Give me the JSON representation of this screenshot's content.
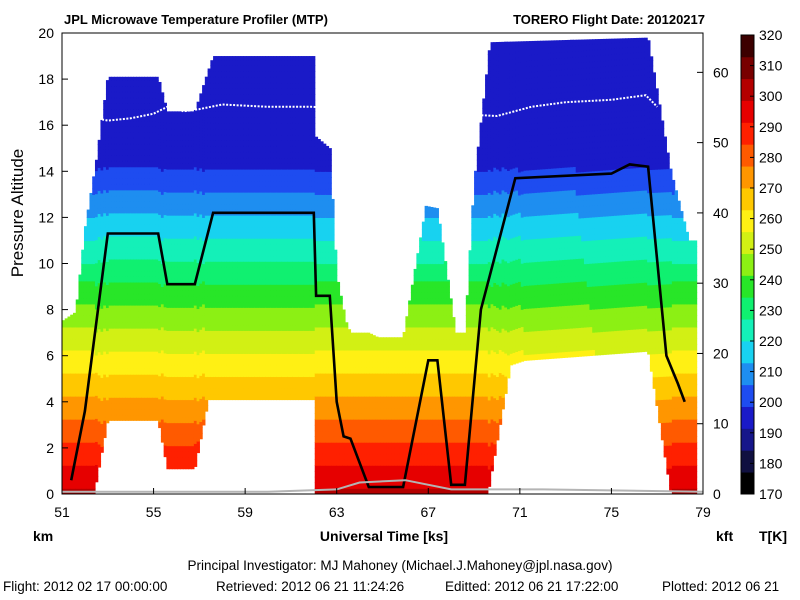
{
  "chart_data": {
    "type": "heatmap",
    "title_left": "JPL Microwave Temperature Profiler (MTP)",
    "title_right": "TORERO  Flight Date: 20120217",
    "xlabel": "Universal Time [ks]",
    "ylabel": "Pressure Altitude",
    "y_unit_left": "km",
    "y_unit_right": "kft",
    "colorbar_unit": "T[K]",
    "xlim": [
      51,
      79
    ],
    "ylim_km": [
      0,
      20
    ],
    "ylim_kft": [
      0,
      65.6
    ],
    "x_ticks": [
      "51",
      "55",
      "59",
      "63",
      "67",
      "71",
      "75",
      "79"
    ],
    "y_ticks_km": [
      "0",
      "2",
      "4",
      "6",
      "8",
      "10",
      "12",
      "14",
      "16",
      "18",
      "20"
    ],
    "y_ticks_kft": [
      "0",
      "10",
      "20",
      "30",
      "40",
      "50",
      "60"
    ],
    "colorbar": {
      "min": 170,
      "max": 320,
      "step": 10,
      "ticks": [
        "170",
        "180",
        "190",
        "200",
        "210",
        "220",
        "230",
        "240",
        "250",
        "260",
        "270",
        "280",
        "290",
        "300",
        "310",
        "320"
      ],
      "colors": [
        "#000000",
        "#101040",
        "#16168a",
        "#1a1ac8",
        "#1e4cf0",
        "#1e8ef0",
        "#18d2f0",
        "#14f0b8",
        "#10f070",
        "#28e628",
        "#8cf014",
        "#d2f014",
        "#fff014",
        "#ffc800",
        "#ff9600",
        "#ff5a00",
        "#ff2000",
        "#e60000",
        "#b40000",
        "#780000",
        "#3c0000"
      ]
    },
    "series": [
      {
        "name": "Aircraft pressure altitude (km)",
        "color": "#000000",
        "points": [
          [
            51.4,
            0.6
          ],
          [
            52.0,
            3.6
          ],
          [
            53.0,
            11.3
          ],
          [
            55.2,
            11.3
          ],
          [
            55.6,
            9.1
          ],
          [
            56.8,
            9.1
          ],
          [
            57.6,
            12.2
          ],
          [
            62.0,
            12.2
          ],
          [
            62.1,
            8.6
          ],
          [
            62.7,
            8.6
          ],
          [
            63.0,
            4.0
          ],
          [
            63.3,
            2.5
          ],
          [
            63.6,
            2.4
          ],
          [
            64.4,
            0.3
          ],
          [
            65.9,
            0.3
          ],
          [
            67.0,
            5.8
          ],
          [
            67.4,
            5.8
          ],
          [
            68.0,
            0.4
          ],
          [
            68.6,
            0.4
          ],
          [
            69.3,
            8.0
          ],
          [
            70.8,
            13.7
          ],
          [
            75.0,
            13.9
          ],
          [
            75.8,
            14.3
          ],
          [
            76.6,
            14.2
          ],
          [
            77.4,
            6.0
          ],
          [
            77.9,
            4.8
          ],
          [
            78.2,
            4.0
          ]
        ]
      },
      {
        "name": "Tropopause (km)",
        "color": "#ffffff",
        "points": [
          [
            52.0,
            16.4
          ],
          [
            53.0,
            16.2
          ],
          [
            54.0,
            16.3
          ],
          [
            55.0,
            16.5
          ],
          [
            55.8,
            16.9
          ],
          [
            56.3,
            16.6
          ],
          [
            57.0,
            16.7
          ],
          [
            58.0,
            16.9
          ],
          [
            60.0,
            16.8
          ],
          [
            61.9,
            16.8
          ],
          [
            70.0,
            16.4
          ],
          [
            71.5,
            16.8
          ],
          [
            73.0,
            17.0
          ],
          [
            75.0,
            17.1
          ],
          [
            76.5,
            17.3
          ],
          [
            77.0,
            16.8
          ]
        ]
      },
      {
        "name": "Ground level (km)",
        "color": "#b4b4b4",
        "points": [
          [
            51.0,
            0.1
          ],
          [
            60.0,
            0.1
          ],
          [
            63.0,
            0.2
          ],
          [
            64.0,
            0.5
          ],
          [
            66.0,
            0.6
          ],
          [
            68.0,
            0.2
          ],
          [
            72.0,
            0.2
          ],
          [
            79.0,
            0.1
          ]
        ]
      }
    ],
    "upper_coverage_km": [
      [
        51.0,
        7.5
      ],
      [
        51.6,
        7.9
      ],
      [
        52.0,
        11.5
      ],
      [
        52.5,
        14.5
      ],
      [
        53.0,
        18.1
      ],
      [
        55.2,
        18.1
      ],
      [
        55.6,
        16.6
      ],
      [
        56.8,
        16.6
      ],
      [
        57.6,
        19.0
      ],
      [
        62.0,
        19.0
      ],
      [
        62.1,
        15.5
      ],
      [
        62.7,
        15.0
      ],
      [
        63.0,
        9.5
      ],
      [
        63.4,
        7.5
      ],
      [
        63.6,
        7.0
      ],
      [
        64.4,
        7.0
      ],
      [
        64.8,
        6.8
      ],
      [
        65.9,
        6.8
      ],
      [
        66.9,
        12.5
      ],
      [
        67.4,
        12.4
      ],
      [
        68.2,
        7.0
      ],
      [
        68.6,
        7.0
      ],
      [
        69.0,
        13.5
      ],
      [
        69.7,
        19.6
      ],
      [
        76.6,
        19.8
      ],
      [
        77.6,
        14.0
      ],
      [
        78.4,
        11.0
      ]
    ],
    "lower_coverage_km": [
      [
        51.0,
        0.0
      ],
      [
        52.4,
        0.0
      ],
      [
        53.0,
        3.2
      ],
      [
        55.2,
        3.2
      ],
      [
        55.6,
        1.1
      ],
      [
        56.8,
        1.1
      ],
      [
        57.4,
        4.1
      ],
      [
        62.0,
        4.1
      ],
      [
        62.1,
        0.0
      ],
      [
        69.6,
        0.0
      ],
      [
        70.6,
        5.6
      ],
      [
        71.2,
        5.8
      ],
      [
        76.6,
        6.2
      ],
      [
        77.6,
        0.0
      ],
      [
        78.4,
        0.0
      ]
    ],
    "t_surface_K": 300,
    "lapse_K_per_km": 7.2,
    "t_min_K": 198,
    "footer": {
      "pi": "Principal Investigator: MJ Mahoney (Michael.J.Mahoney@jpl.nasa.gov)",
      "flight": "Flight: 2012 02 17 00:00:00",
      "retrieved": "Retrieved: 2012 06 21 11:24:26",
      "editted": "Editted: 2012 06 21 17:22:00",
      "plotted": "Plotted: 2012 06 21"
    }
  }
}
